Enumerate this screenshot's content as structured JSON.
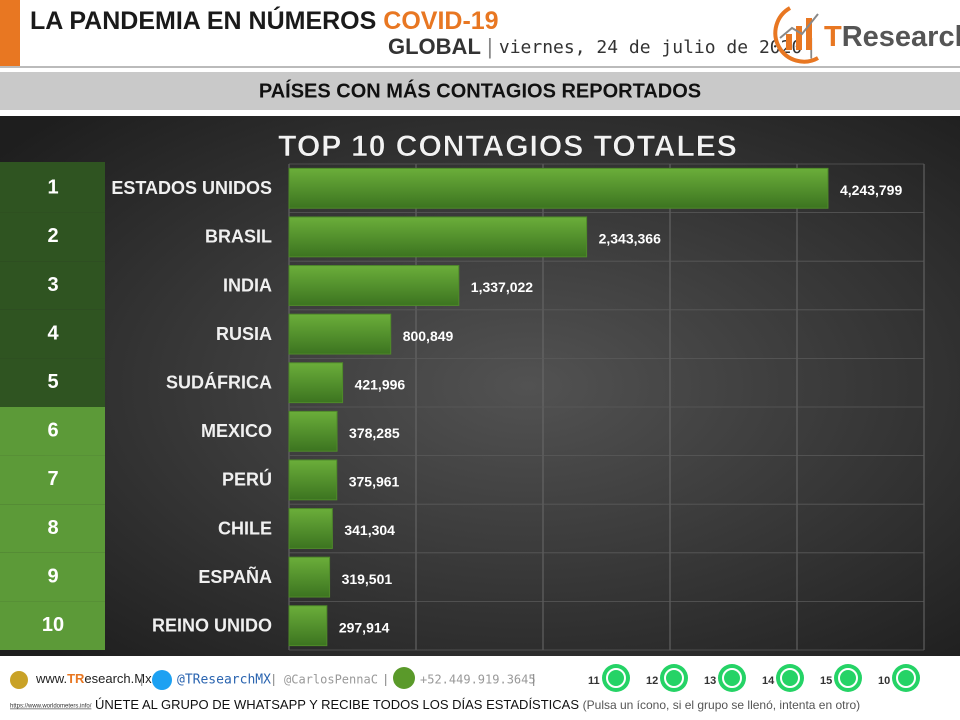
{
  "header": {
    "title_main": "LA PANDEMIA EN NÚMEROS",
    "title_accent": "COVID-19",
    "region": "GLOBAL",
    "separator": "|",
    "date": "viernes, 24 de julio de 2020",
    "logo_t": "T",
    "logo_rest": "Research"
  },
  "banner": "PAÍSES CON MÁS CONTAGIOS REPORTADOS",
  "chart_data": {
    "type": "bar",
    "orientation": "horizontal",
    "title": "TOP 10 CONTAGIOS TOTALES",
    "ranks": [
      "1",
      "2",
      "3",
      "4",
      "5",
      "6",
      "7",
      "8",
      "9",
      "10"
    ],
    "rank_colors": [
      "#2f5421",
      "#2f5421",
      "#2f5421",
      "#2f5421",
      "#2f5421",
      "#5c9a38",
      "#5c9a38",
      "#5c9a38",
      "#5c9a38",
      "#5c9a38"
    ],
    "categories": [
      "ESTADOS UNIDOS",
      "BRASIL",
      "INDIA",
      "RUSIA",
      "SUDÁFRICA",
      "MEXICO",
      "PERÚ",
      "CHILE",
      "ESPAÑA",
      "REINO UNIDO"
    ],
    "values": [
      4243799,
      2343366,
      1337022,
      800849,
      421996,
      378285,
      375961,
      341304,
      319501,
      297914
    ],
    "value_labels": [
      "4,243,799",
      "2,343,366",
      "1,337,022",
      "800,849",
      "421,996",
      "378,285",
      "375,961",
      "341,304",
      "319,501",
      "297,914"
    ],
    "color": "#4f8a2a",
    "xlim": [
      0,
      5000000
    ],
    "xticks": [
      0,
      1000000,
      2000000,
      3000000,
      4000000,
      5000000
    ],
    "grid": true
  },
  "footer": {
    "website_prefix": "www.",
    "website_accent": "TR",
    "website_rest": "esearch.Mx",
    "separator": "|",
    "twitter": "@TResearchMX",
    "twitter2": "@CarlosPennaC",
    "phone": "+52.449.919.3645",
    "groups": [
      "11",
      "12",
      "13",
      "14",
      "15",
      "10"
    ],
    "cta": "ÚNETE AL GRUPO DE WHATSAPP Y RECIBE TODOS LOS DÍAS ESTADÍSTICAS",
    "note": "(Pulsa un ícono, si el grupo se llenó, intenta en otro)",
    "source": "https://www.worldometers.info/"
  }
}
